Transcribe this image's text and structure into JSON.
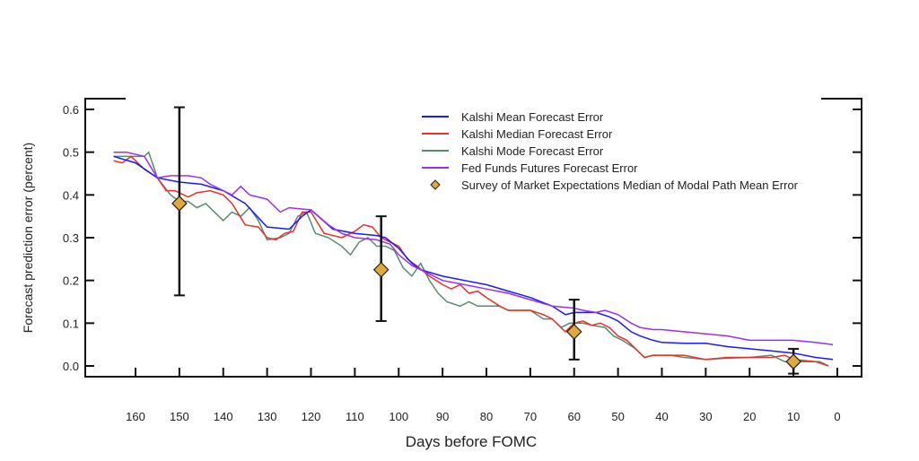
{
  "chart_data": {
    "type": "line",
    "xlabel": "Days before FOMC",
    "ylabel": "Forecast prediction error (percent)",
    "xlim": [
      170,
      -4
    ],
    "ylim": [
      -0.025,
      0.625
    ],
    "x_reversed": true,
    "xticks": [
      160,
      150,
      140,
      130,
      120,
      110,
      100,
      90,
      80,
      70,
      60,
      50,
      40,
      30,
      20,
      10,
      0
    ],
    "yticks": [
      0.0,
      0.1,
      0.2,
      0.3,
      0.4,
      0.5,
      0.6
    ],
    "ytick_labels": [
      "0.0",
      "0.1",
      "0.2",
      "0.3",
      "0.4",
      "0.5",
      "0.6"
    ],
    "grid": false,
    "legend_position": "top-right",
    "series": [
      {
        "name": "Kalshi Mean Forecast Error",
        "color": "#1a1aff",
        "x": [
          165,
          160,
          155,
          150,
          145,
          140,
          135,
          130,
          125,
          122,
          120,
          115,
          110,
          105,
          103,
          100,
          97,
          95,
          90,
          85,
          80,
          75,
          70,
          65,
          62,
          60,
          55,
          52,
          50,
          47,
          45,
          42,
          40,
          35,
          30,
          25,
          20,
          15,
          10,
          5,
          1
        ],
        "y": [
          0.49,
          0.475,
          0.44,
          0.43,
          0.425,
          0.41,
          0.38,
          0.325,
          0.32,
          0.35,
          0.365,
          0.32,
          0.31,
          0.305,
          0.3,
          0.275,
          0.24,
          0.225,
          0.21,
          0.2,
          0.19,
          0.175,
          0.16,
          0.14,
          0.12,
          0.125,
          0.125,
          0.115,
          0.105,
          0.08,
          0.07,
          0.06,
          0.055,
          0.053,
          0.053,
          0.045,
          0.04,
          0.035,
          0.03,
          0.02,
          0.015
        ]
      },
      {
        "name": "Kalshi Median Forecast Error",
        "color": "#e8312a",
        "x": [
          165,
          163,
          161,
          158,
          155,
          153,
          151,
          148,
          146,
          143,
          140,
          138,
          135,
          132,
          130,
          128,
          126,
          124,
          122,
          120,
          117,
          113,
          110,
          108,
          106,
          104,
          102,
          100,
          98,
          96,
          93,
          90,
          88,
          86,
          84,
          82,
          80,
          77,
          75,
          70,
          67,
          65,
          62,
          60,
          58,
          56,
          54,
          52,
          50,
          48,
          46,
          44,
          42,
          40,
          35,
          30,
          25,
          20,
          15,
          12,
          10,
          5,
          2
        ],
        "y": [
          0.48,
          0.475,
          0.49,
          0.46,
          0.44,
          0.41,
          0.41,
          0.395,
          0.405,
          0.41,
          0.4,
          0.38,
          0.33,
          0.325,
          0.3,
          0.295,
          0.31,
          0.315,
          0.36,
          0.36,
          0.31,
          0.3,
          0.315,
          0.33,
          0.325,
          0.3,
          0.29,
          0.28,
          0.25,
          0.235,
          0.21,
          0.19,
          0.18,
          0.19,
          0.17,
          0.175,
          0.16,
          0.14,
          0.13,
          0.13,
          0.12,
          0.11,
          0.08,
          0.1,
          0.105,
          0.095,
          0.1,
          0.09,
          0.07,
          0.06,
          0.04,
          0.02,
          0.025,
          0.025,
          0.025,
          0.015,
          0.02,
          0.02,
          0.02,
          0.025,
          0.015,
          0.01,
          0.0
        ]
      },
      {
        "name": "Kalshi Mode Forecast Error",
        "color": "#5a8a70",
        "x": [
          165,
          162,
          158,
          157,
          155,
          152,
          150,
          148,
          146,
          144,
          142,
          140,
          138,
          136,
          134,
          132,
          130,
          127,
          125,
          123,
          121,
          119,
          116,
          113,
          111,
          109,
          107,
          105,
          103,
          101,
          99,
          97,
          95,
          93,
          91,
          89,
          86,
          84,
          82,
          80,
          77,
          75,
          70,
          67,
          65,
          63,
          61,
          58,
          56,
          53,
          51,
          49,
          46,
          44,
          42,
          38,
          35,
          30,
          25,
          20,
          15,
          12,
          8,
          4,
          2
        ],
        "y": [
          0.49,
          0.49,
          0.49,
          0.5,
          0.44,
          0.4,
          0.385,
          0.385,
          0.37,
          0.38,
          0.36,
          0.34,
          0.36,
          0.35,
          0.37,
          0.34,
          0.295,
          0.3,
          0.31,
          0.35,
          0.36,
          0.31,
          0.3,
          0.28,
          0.26,
          0.29,
          0.3,
          0.28,
          0.28,
          0.27,
          0.23,
          0.21,
          0.24,
          0.2,
          0.17,
          0.15,
          0.14,
          0.15,
          0.14,
          0.14,
          0.14,
          0.13,
          0.13,
          0.11,
          0.11,
          0.09,
          0.1,
          0.1,
          0.095,
          0.09,
          0.07,
          0.06,
          0.04,
          0.02,
          0.025,
          0.025,
          0.02,
          0.015,
          0.018,
          0.02,
          0.025,
          0.01,
          0.01,
          0.01,
          0.0
        ]
      },
      {
        "name": "Fed Funds Futures Forecast Error",
        "color": "#9b30f0",
        "x": [
          165,
          162,
          158,
          155,
          152,
          148,
          145,
          143,
          138,
          136,
          134,
          130,
          127,
          125,
          120,
          116,
          113,
          110,
          105,
          102,
          100,
          97,
          95,
          90,
          85,
          80,
          75,
          70,
          65,
          60,
          58,
          55,
          53,
          50,
          47,
          45,
          42,
          40,
          35,
          30,
          25,
          20,
          15,
          10,
          5,
          1
        ],
        "y": [
          0.5,
          0.5,
          0.49,
          0.44,
          0.445,
          0.445,
          0.44,
          0.425,
          0.4,
          0.42,
          0.4,
          0.39,
          0.36,
          0.37,
          0.365,
          0.33,
          0.31,
          0.3,
          0.295,
          0.285,
          0.26,
          0.235,
          0.225,
          0.2,
          0.19,
          0.18,
          0.17,
          0.155,
          0.14,
          0.135,
          0.13,
          0.125,
          0.13,
          0.12,
          0.1,
          0.09,
          0.085,
          0.085,
          0.08,
          0.075,
          0.07,
          0.06,
          0.06,
          0.06,
          0.055,
          0.05
        ]
      }
    ],
    "survey": {
      "name": "Survey of Market Expectations Median of Modal Path Mean Error",
      "color": "#e0a93a",
      "points": [
        {
          "x": 150,
          "y": 0.38,
          "low": 0.165,
          "high": 0.605
        },
        {
          "x": 104,
          "y": 0.225,
          "low": 0.105,
          "high": 0.35
        },
        {
          "x": 60,
          "y": 0.08,
          "low": 0.015,
          "high": 0.155
        },
        {
          "x": 10,
          "y": 0.01,
          "low": -0.018,
          "high": 0.04
        }
      ]
    }
  }
}
